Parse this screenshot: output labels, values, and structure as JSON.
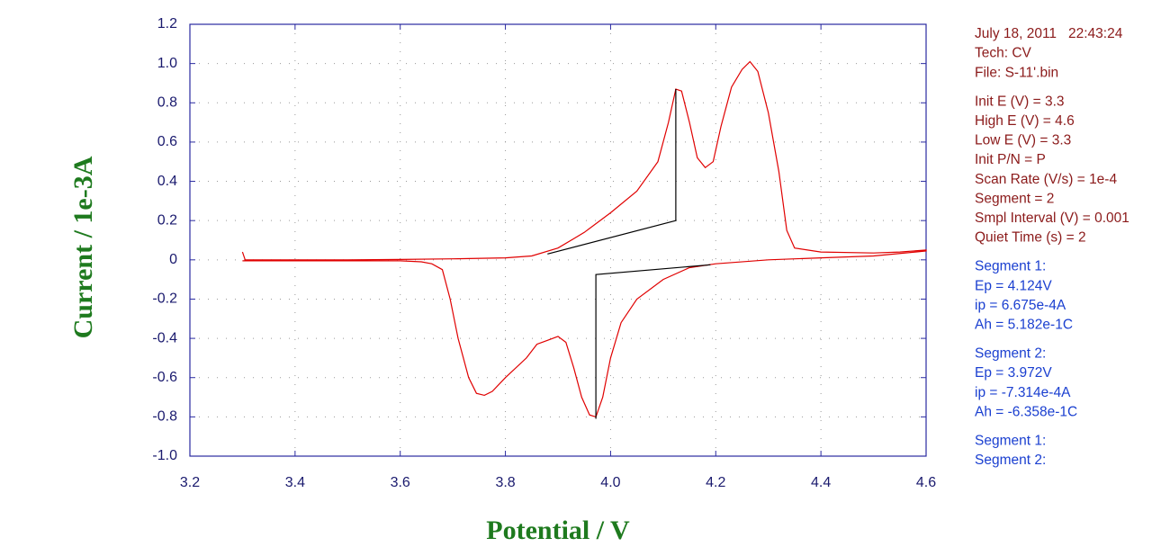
{
  "chart_data": {
    "type": "line",
    "xlabel": "Potential / V",
    "ylabel": "Current / 1e-3A",
    "xlim": [
      3.2,
      4.6
    ],
    "ylim": [
      -1.0,
      1.2
    ],
    "xticks": [
      3.2,
      3.4,
      3.6,
      3.8,
      {
        "value": 4.0,
        "label": "4.0"
      },
      4.2,
      4.4,
      4.6
    ],
    "yticks": [
      {
        "value": 1.2,
        "label": "1.2"
      },
      {
        "value": 1.0,
        "label": "1.0"
      },
      0.8,
      0.6,
      0.4,
      0.2,
      0,
      -0.2,
      -0.4,
      -0.6,
      -0.8,
      {
        "value": -1.0,
        "label": "-1.0"
      }
    ],
    "grid": true,
    "series": [
      {
        "color": "#e00000",
        "x": [
          3.3,
          3.305,
          3.4,
          3.5,
          3.6,
          3.7,
          3.8,
          3.85,
          3.9,
          3.95,
          4.0,
          4.05,
          4.09,
          4.11,
          4.124,
          4.135,
          4.15,
          4.165,
          4.18,
          4.195,
          4.21,
          4.23,
          4.25,
          4.265,
          4.28,
          4.3,
          4.32,
          4.335,
          4.35,
          4.4,
          4.5,
          4.55,
          4.6,
          4.6,
          4.5,
          4.4,
          4.3,
          4.2,
          4.15,
          4.1,
          4.05,
          4.02,
          4.0,
          3.985,
          3.972,
          3.96,
          3.945,
          3.93,
          3.915,
          3.9,
          3.88,
          3.86,
          3.84,
          3.8,
          3.775,
          3.76,
          3.745,
          3.73,
          3.71,
          3.695,
          3.68,
          3.66,
          3.64,
          3.6,
          3.4,
          3.3
        ],
        "values": [
          0.04,
          0.0,
          0.0,
          0.0,
          0.002,
          0.005,
          0.01,
          0.02,
          0.06,
          0.14,
          0.24,
          0.35,
          0.5,
          0.7,
          0.87,
          0.86,
          0.7,
          0.52,
          0.47,
          0.5,
          0.68,
          0.88,
          0.97,
          1.01,
          0.96,
          0.75,
          0.45,
          0.15,
          0.06,
          0.04,
          0.035,
          0.04,
          0.05,
          0.045,
          0.02,
          0.01,
          0.0,
          -0.02,
          -0.04,
          -0.1,
          -0.2,
          -0.32,
          -0.5,
          -0.7,
          -0.8,
          -0.79,
          -0.7,
          -0.55,
          -0.42,
          -0.39,
          -0.41,
          -0.43,
          -0.5,
          -0.6,
          -0.67,
          -0.69,
          -0.68,
          -0.6,
          -0.4,
          -0.2,
          -0.05,
          -0.02,
          -0.01,
          -0.005,
          -0.005,
          -0.005
        ]
      },
      {
        "color": "#000000",
        "x": [
          3.88,
          4.124,
          4.124
        ],
        "values": [
          0.03,
          0.2,
          0.87
        ]
      },
      {
        "color": "#000000",
        "x": [
          4.19,
          3.972,
          3.972
        ],
        "values": [
          -0.025,
          -0.075,
          -0.81
        ]
      }
    ]
  },
  "info": {
    "blocks": [
      {
        "color": "#8b1a1a",
        "lines": [
          "July 18, 2011   22:43:24",
          "Tech: CV",
          "File: S-11'.bin"
        ]
      },
      {
        "color": "#8b1a1a",
        "lines": [
          "Init E (V) = 3.3",
          "High E (V) = 4.6",
          "Low E (V) = 3.3",
          "Init P/N = P",
          "Scan Rate (V/s) = 1e-4",
          "Segment = 2",
          "Smpl Interval (V) = 0.001",
          "Quiet Time (s) = 2"
        ]
      },
      {
        "color": "#1a3fd0",
        "lines": [
          "Segment 1:",
          "Ep = 4.124V",
          "ip = 6.675e-4A",
          "Ah = 5.182e-1C"
        ]
      },
      {
        "color": "#1a3fd0",
        "lines": [
          "Segment 2:",
          "Ep = 3.972V",
          "ip = -7.314e-4A",
          "Ah = -6.358e-1C"
        ]
      },
      {
        "color": "#1a3fd0",
        "lines": [
          "Segment 1:",
          "Segment 2:"
        ]
      }
    ]
  }
}
